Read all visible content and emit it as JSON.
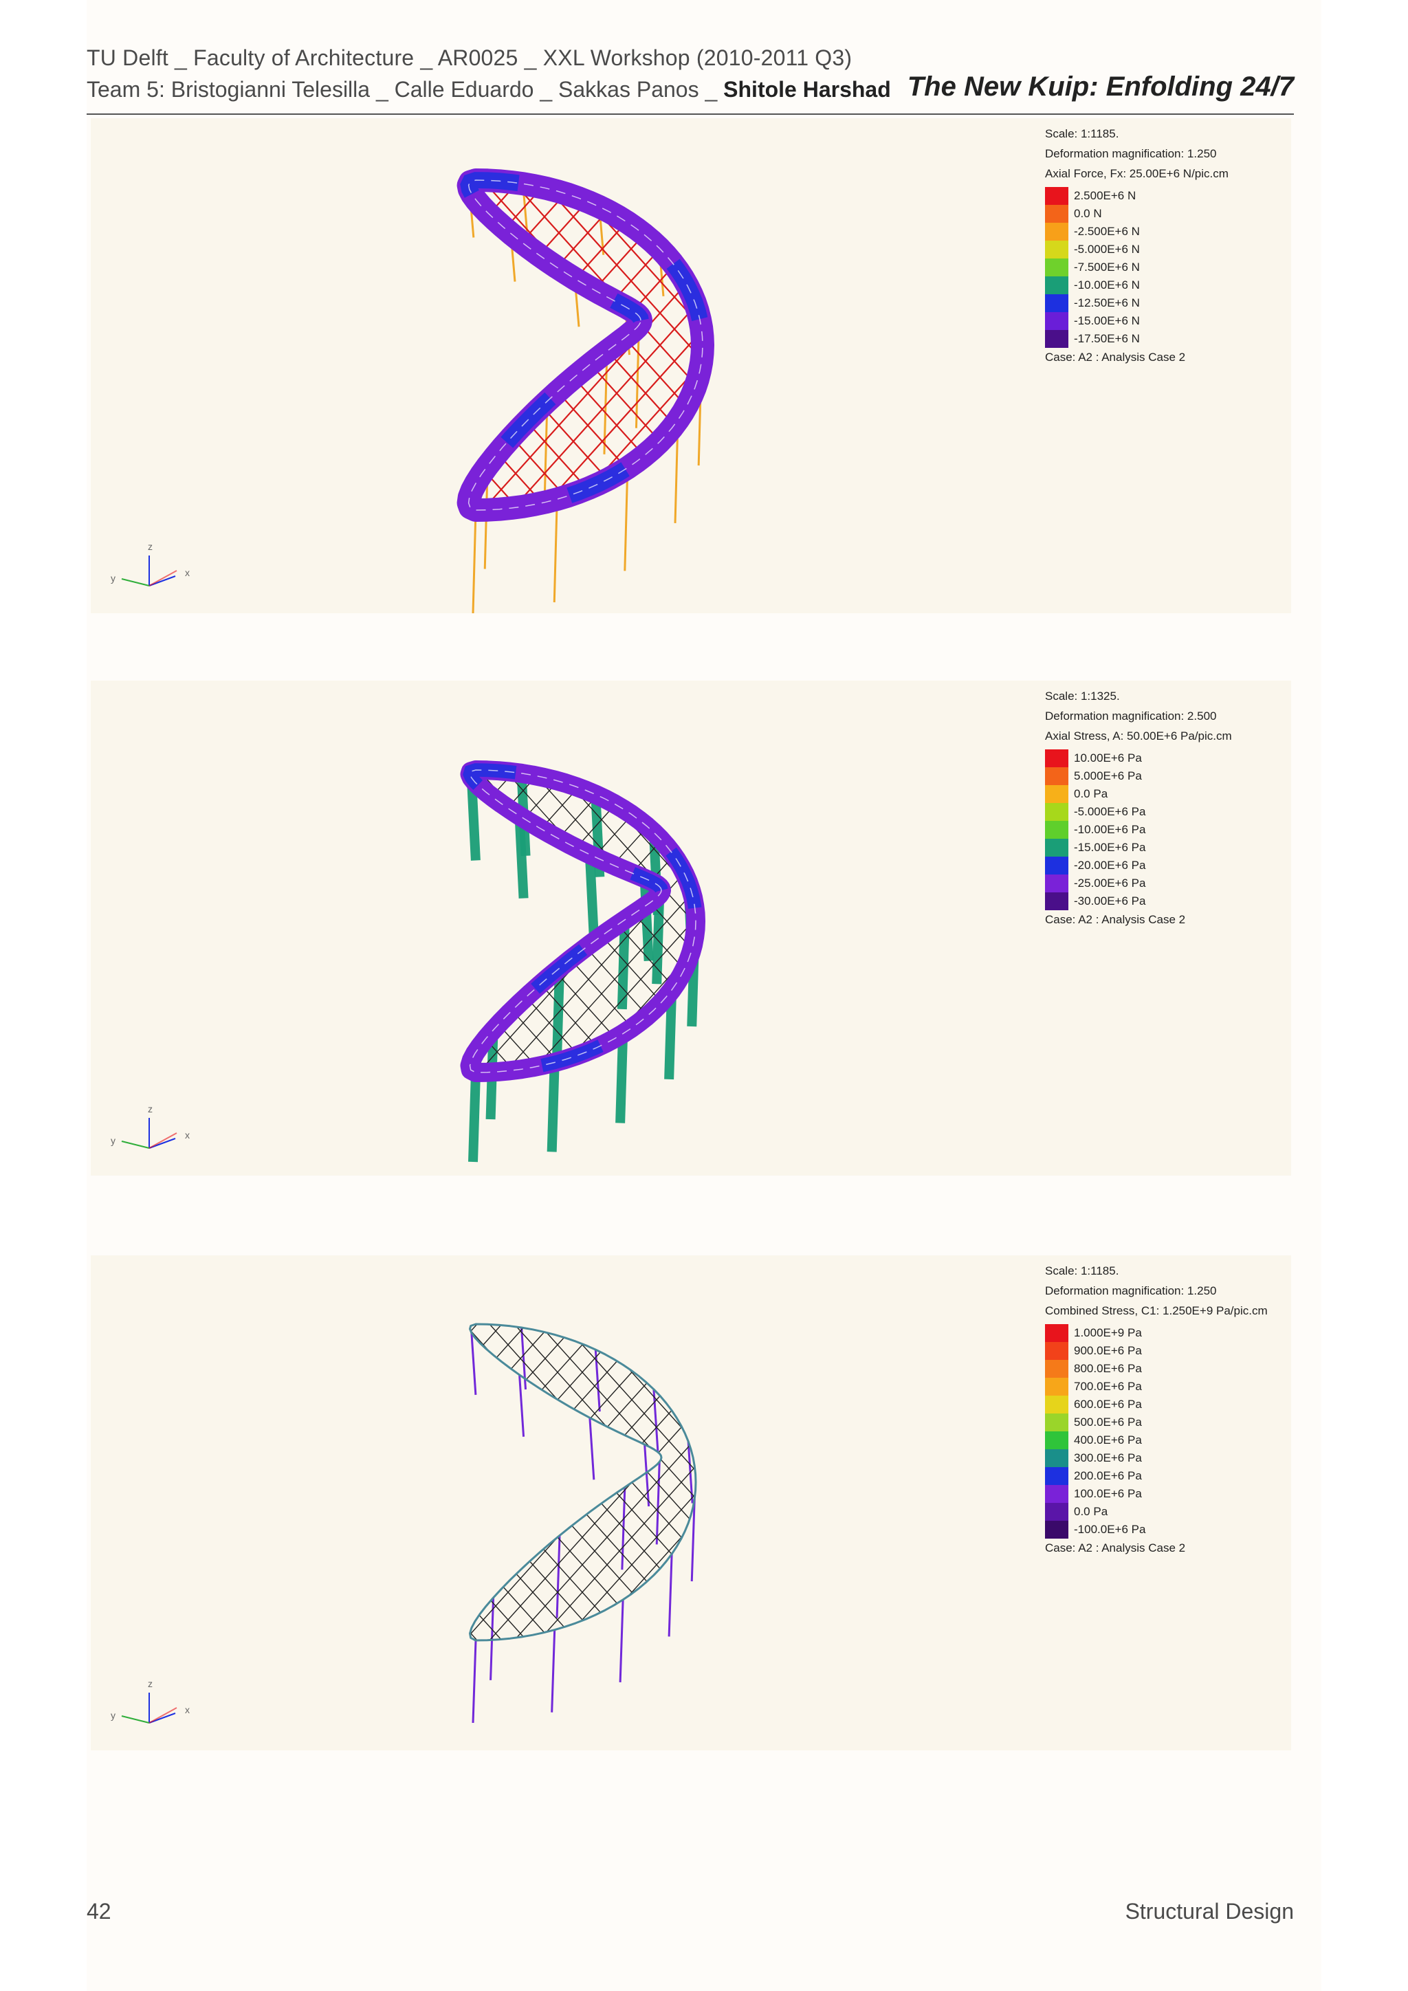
{
  "header": {
    "line1": "TU Delft _ Faculty of Architecture _ AR0025 _ XXL Workshop  (2010-2011 Q3)",
    "line2_prefix": "Team 5: Bristogianni Telesilla _ Calle Eduardo _ Sakkas Panos _ ",
    "line2_bold": "Shitole Harshad",
    "title": "The New Kuip: Enfolding 24/7"
  },
  "panels": [
    {
      "scale": "Scale: 1:1185.",
      "deformation": "Deformation magnification: 1.250",
      "quantity": "Axial Force, Fx: 25.00E+6 N/pic.cm",
      "legend": [
        {
          "label": "2.500E+6 N",
          "color": "#e8141c"
        },
        {
          "label": "0.0 N",
          "color": "#f36419"
        },
        {
          "label": "-2.500E+6 N",
          "color": "#f7a019"
        },
        {
          "label": "-5.000E+6 N",
          "color": "#d6d81b"
        },
        {
          "label": "-7.500E+6 N",
          "color": "#6fd12c"
        },
        {
          "label": "-10.00E+6 N",
          "color": "#1a9e77"
        },
        {
          "label": "-12.50E+6 N",
          "color": "#1d30e0"
        },
        {
          "label": "-15.00E+6 N",
          "color": "#6a1ed8"
        },
        {
          "label": "-17.50E+6 N",
          "color": "#4a0f8a"
        }
      ],
      "case": "Case: A2 : Analysis Case 2",
      "axes": {
        "x": "x",
        "y": "y",
        "z": "z"
      }
    },
    {
      "scale": "Scale: 1:1325.",
      "deformation": "Deformation magnification: 2.500",
      "quantity": "Axial Stress, A: 50.00E+6 Pa/pic.cm",
      "legend": [
        {
          "label": "10.00E+6 Pa",
          "color": "#e8141c"
        },
        {
          "label": "5.000E+6 Pa",
          "color": "#f36419"
        },
        {
          "label": "0.0 Pa",
          "color": "#f7b019"
        },
        {
          "label": "-5.000E+6 Pa",
          "color": "#a7d81b"
        },
        {
          "label": "-10.00E+6 Pa",
          "color": "#5fcf2c"
        },
        {
          "label": "-15.00E+6 Pa",
          "color": "#1a9e77"
        },
        {
          "label": "-20.00E+6 Pa",
          "color": "#1d30e0"
        },
        {
          "label": "-25.00E+6 Pa",
          "color": "#7a22d8"
        },
        {
          "label": "-30.00E+6 Pa",
          "color": "#4a0f8a"
        }
      ],
      "case": "Case: A2 : Analysis Case 2",
      "axes": {
        "x": "x",
        "y": "y",
        "z": "z"
      }
    },
    {
      "scale": "Scale: 1:1185.",
      "deformation": "Deformation magnification: 1.250",
      "quantity": "Combined Stress, C1: 1.250E+9 Pa/pic.cm",
      "legend": [
        {
          "label": "1.000E+9 Pa",
          "color": "#e8141c"
        },
        {
          "label": "900.0E+6 Pa",
          "color": "#f2421a"
        },
        {
          "label": "800.0E+6 Pa",
          "color": "#f57a19"
        },
        {
          "label": "700.0E+6 Pa",
          "color": "#f7a619"
        },
        {
          "label": "600.0E+6 Pa",
          "color": "#e6d41b"
        },
        {
          "label": "500.0E+6 Pa",
          "color": "#9ad52a"
        },
        {
          "label": "400.0E+6 Pa",
          "color": "#2fc43a"
        },
        {
          "label": "300.0E+6 Pa",
          "color": "#1a8f8a"
        },
        {
          "label": "200.0E+6 Pa",
          "color": "#1d30e0"
        },
        {
          "label": "100.0E+6 Pa",
          "color": "#7a22d8"
        },
        {
          "label": "0.0 Pa",
          "color": "#5a15a8"
        },
        {
          "label": "-100.0E+6 Pa",
          "color": "#3a0a6a"
        }
      ],
      "case": "Case: A2 : Analysis Case 2",
      "axes": {
        "x": "x",
        "y": "y",
        "z": "z"
      }
    }
  ],
  "footer": {
    "page_number": "42",
    "section": "Structural Design"
  }
}
